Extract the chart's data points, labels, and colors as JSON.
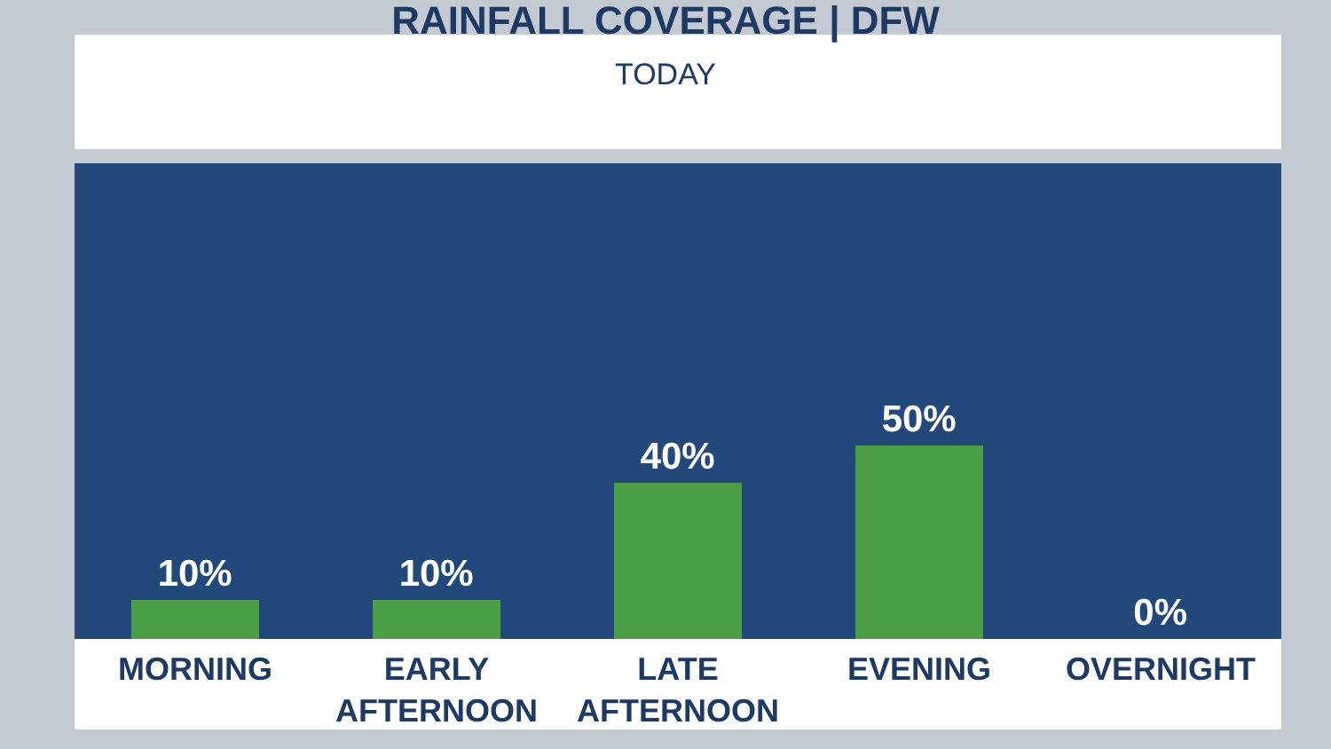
{
  "chart_data": {
    "type": "bar",
    "title": "RAINFALL COVERAGE | DFW",
    "subtitle": "TODAY",
    "categories": [
      "MORNING",
      "EARLY AFTERNOON",
      "LATE AFTERNOON",
      "EVENING",
      "OVERNIGHT"
    ],
    "values": [
      10,
      10,
      40,
      50,
      0
    ],
    "value_labels": [
      "10%",
      "10%",
      "40%",
      "50%",
      "0%"
    ],
    "color": "#4a9e45",
    "grid": false,
    "legend": false
  }
}
